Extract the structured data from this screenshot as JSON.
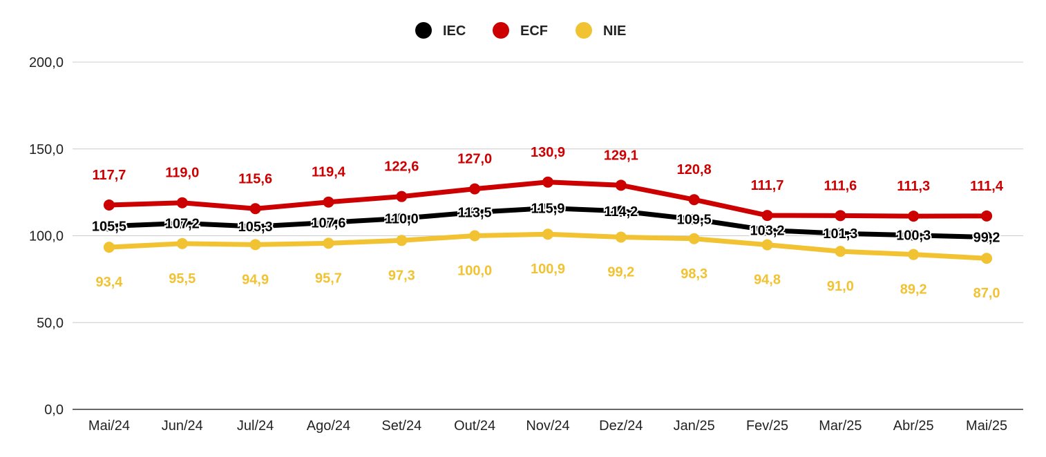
{
  "chart_data": {
    "type": "line",
    "categories": [
      "Mai/24",
      "Jun/24",
      "Jul/24",
      "Ago/24",
      "Set/24",
      "Out/24",
      "Nov/24",
      "Dez/24",
      "Jan/25",
      "Fev/25",
      "Mar/25",
      "Abr/25",
      "Mai/25"
    ],
    "ylim": [
      0,
      200
    ],
    "y_ticks": [
      "0,0",
      "50,0",
      "100,0",
      "150,0",
      "200,0"
    ],
    "y_tick_values": [
      0,
      50,
      100,
      150,
      200
    ],
    "grid": true,
    "legend_position": "top-center",
    "series": [
      {
        "name": "IEC",
        "color": "#000000",
        "values": [
          105.5,
          107.2,
          105.3,
          107.6,
          110.0,
          113.5,
          115.9,
          114.2,
          109.5,
          103.2,
          101.3,
          100.3,
          99.2
        ],
        "labels": [
          "105,5",
          "107,2",
          "105,3",
          "107,6",
          "110,0",
          "113,5",
          "115,9",
          "114,2",
          "109,5",
          "103,2",
          "101,3",
          "100,3",
          "99,2"
        ],
        "label_position": "center",
        "label_color": "#000000"
      },
      {
        "name": "ECF",
        "color": "#cc0000",
        "values": [
          117.7,
          119.0,
          115.6,
          119.4,
          122.6,
          127.0,
          130.9,
          129.1,
          120.8,
          111.7,
          111.6,
          111.3,
          111.4
        ],
        "labels": [
          "117,7",
          "119,0",
          "115,6",
          "119,4",
          "122,6",
          "127,0",
          "130,9",
          "129,1",
          "120,8",
          "111,7",
          "111,6",
          "111,3",
          "111,4"
        ],
        "label_position": "above",
        "label_color": "#cc0000"
      },
      {
        "name": "NIE",
        "color": "#f1c232",
        "values": [
          93.4,
          95.5,
          94.9,
          95.7,
          97.3,
          100.0,
          100.9,
          99.2,
          98.3,
          94.8,
          91.0,
          89.2,
          87.0
        ],
        "labels": [
          "93,4",
          "95,5",
          "94,9",
          "95,7",
          "97,3",
          "100,0",
          "100,9",
          "99,2",
          "98,3",
          "94,8",
          "91,0",
          "89,2",
          "87,0"
        ],
        "label_position": "below",
        "label_color": "#f1c232"
      }
    ]
  }
}
